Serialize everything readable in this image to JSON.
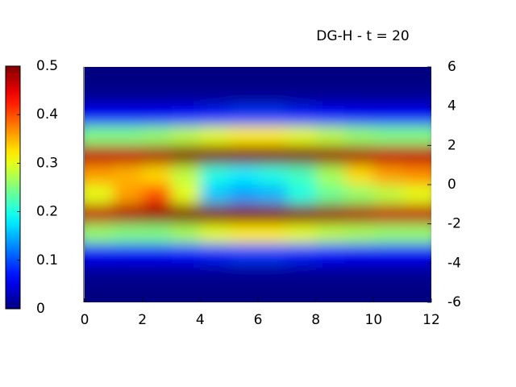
{
  "chart_data": {
    "type": "heatmap",
    "title": "DG-H  - t = 20",
    "x": [
      0.5,
      1.5,
      2.5,
      3.5,
      4.5,
      5.5,
      6.5,
      7.5,
      8.5,
      9.5,
      10.5,
      11.5
    ],
    "y": [
      5.5,
      4.5,
      3.5,
      2.5,
      1.5,
      0.5,
      -0.5,
      -1.5,
      -2.5,
      -3.5,
      -4.5,
      -5.5
    ],
    "z": [
      [
        0,
        0,
        0,
        0,
        0,
        0,
        0,
        0,
        0,
        0,
        0,
        0
      ],
      [
        0.01,
        0.01,
        0.01,
        0.01,
        0.01,
        0.01,
        0.01,
        0.01,
        0.01,
        0.01,
        0.01,
        0.01
      ],
      [
        0.06,
        0.06,
        0.06,
        0.07,
        0.08,
        0.09,
        0.09,
        0.08,
        0.07,
        0.06,
        0.06,
        0.06
      ],
      [
        0.25,
        0.25,
        0.26,
        0.28,
        0.3,
        0.32,
        0.32,
        0.3,
        0.28,
        0.26,
        0.25,
        0.25
      ],
      [
        0.47,
        0.47,
        0.48,
        0.5,
        0.5,
        0.5,
        0.5,
        0.5,
        0.49,
        0.48,
        0.47,
        0.47
      ],
      [
        0.36,
        0.35,
        0.33,
        0.28,
        0.2,
        0.18,
        0.2,
        0.22,
        0.27,
        0.33,
        0.36,
        0.37
      ],
      [
        0.3,
        0.36,
        0.4,
        0.3,
        0.16,
        0.14,
        0.15,
        0.2,
        0.24,
        0.26,
        0.28,
        0.3
      ],
      [
        0.47,
        0.48,
        0.49,
        0.5,
        0.5,
        0.5,
        0.5,
        0.5,
        0.49,
        0.48,
        0.47,
        0.47
      ],
      [
        0.26,
        0.25,
        0.25,
        0.27,
        0.3,
        0.32,
        0.32,
        0.3,
        0.28,
        0.27,
        0.26,
        0.26
      ],
      [
        0.06,
        0.06,
        0.06,
        0.07,
        0.08,
        0.09,
        0.09,
        0.08,
        0.07,
        0.06,
        0.06,
        0.06
      ],
      [
        0.01,
        0.01,
        0.01,
        0.01,
        0.01,
        0.01,
        0.01,
        0.01,
        0.01,
        0.01,
        0.01,
        0.01
      ],
      [
        0,
        0,
        0,
        0,
        0,
        0,
        0,
        0,
        0,
        0,
        0,
        0
      ]
    ],
    "xlim": [
      0,
      12
    ],
    "ylim": [
      -6,
      6
    ],
    "clim": [
      0,
      0.5
    ],
    "xticks": [
      0,
      2,
      4,
      6,
      8,
      10,
      12
    ],
    "yticks": [
      6,
      4,
      2,
      0,
      -2,
      -4,
      -6
    ],
    "cticks": [
      0,
      0.1,
      0.2,
      0.3,
      0.4,
      0.5
    ],
    "colormap": "jet"
  }
}
